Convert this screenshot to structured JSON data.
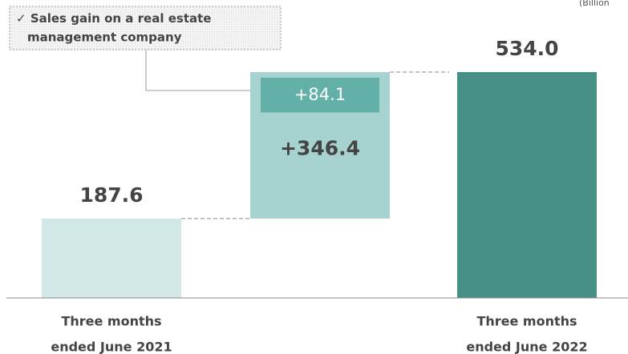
{
  "chart_data": {
    "type": "waterfall",
    "unit_label": "(Billion",
    "categories": [
      [
        "Three months",
        "ended June 2021"
      ],
      null,
      [
        "Three months",
        "ended June 2022"
      ]
    ],
    "values": [
      187.6,
      346.4,
      534.0
    ],
    "value_labels": [
      "187.6",
      "+346.4",
      "534.0"
    ],
    "kinds": [
      "total",
      "increase",
      "total"
    ],
    "colors": [
      "#d1e8e6",
      "#a6d3cf",
      "#468f87"
    ],
    "breakdown": {
      "value": 84.1,
      "label": "+84.1",
      "color": "#62b0a8"
    },
    "annotation": {
      "check": "✓",
      "lines": [
        "Sales gain on a real estate",
        "management company"
      ]
    }
  }
}
